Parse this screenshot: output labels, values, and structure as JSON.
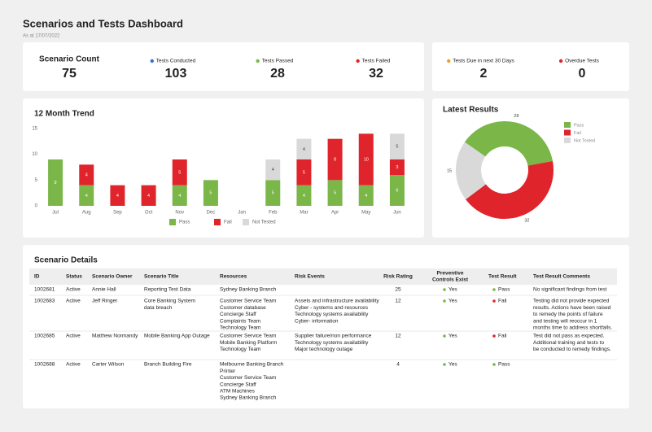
{
  "header": {
    "title": "Scenarios and Tests Dashboard",
    "subtitle": "As at 17/07/2022"
  },
  "kpis": [
    {
      "label": "Scenario Count",
      "value": 75
    },
    {
      "label": "Tests Conducted",
      "value": 103,
      "color": "#3a6fc4"
    },
    {
      "label": "Tests Passed",
      "value": 28,
      "color": "#7ab648"
    },
    {
      "label": "Tests Failed",
      "value": 32,
      "color": "#e0242b"
    },
    {
      "label": "Tests Due in next 30 Days",
      "value": 2,
      "color": "#f0a020"
    },
    {
      "label": "Overdue Tests",
      "value": 0,
      "color": "#e0242b"
    }
  ],
  "chart_data": [
    {
      "type": "bar",
      "stacked": true,
      "title": "12 Month Trend",
      "categories": [
        "Jul",
        "Aug",
        "Sep",
        "Oct",
        "Nov",
        "Dec",
        "Jan",
        "Feb",
        "Mar",
        "Apr",
        "May",
        "Jun"
      ],
      "series": [
        {
          "name": "Pass",
          "color": "#7ab648",
          "values": [
            9,
            4,
            null,
            null,
            4,
            5,
            null,
            5,
            4,
            5,
            4,
            6
          ]
        },
        {
          "name": "Fail",
          "color": "#e0242b",
          "values": [
            null,
            4,
            4,
            4,
            5,
            null,
            null,
            null,
            5,
            8,
            10,
            3
          ]
        },
        {
          "name": "Not Tested",
          "color": "#d9d9d9",
          "values": [
            null,
            null,
            null,
            null,
            null,
            null,
            null,
            4,
            4,
            null,
            null,
            5
          ]
        }
      ],
      "ylim": [
        0,
        15
      ],
      "yticks": [
        0,
        5,
        10,
        15
      ]
    },
    {
      "type": "pie",
      "donut": true,
      "title": "Latest Results",
      "categories": [
        "Pass",
        "Fail",
        "Not Tested"
      ],
      "values": [
        28,
        32,
        15
      ],
      "colors": [
        "#7ab648",
        "#e0242b",
        "#d9d9d9"
      ]
    }
  ],
  "table": {
    "title": "Scenario Details",
    "columns": [
      "ID",
      "Status",
      "Scenario Owner",
      "Scenario Title",
      "Resources",
      "Risk Events",
      "Risk Rating",
      [
        "Preventive",
        "Controls Exist"
      ],
      "Test Result",
      "Test Result Comments"
    ],
    "rows": [
      [
        "1002681",
        "Active",
        "Annie Hall",
        "Reporting Test Data",
        [
          "Sydney Banking Branch"
        ],
        [],
        25,
        {
          "text": "Yes",
          "dot": "#7ab648"
        },
        {
          "text": "Pass",
          "dot": "#7ab648"
        },
        [
          "No significant findings from test"
        ]
      ],
      [
        "1002683",
        "Active",
        "Jeff Ringer",
        [
          "Core Banking System",
          "data breach"
        ],
        [
          "Customer Service Team",
          "Customer database",
          "Concierge Staff",
          "Complaints Team",
          "Technology Team"
        ],
        [
          "Assets and infrastructure availability",
          "Cyber - systems and resources",
          "Technology systems availability",
          "Cyber- information"
        ],
        12,
        {
          "text": "Yes",
          "dot": "#7ab648"
        },
        {
          "text": "Fail",
          "dot": "#e0242b"
        },
        [
          "Testing did not provide expected",
          "results. Actions have been raised",
          "to remedy the points of failure",
          "and testing will reoccur in 1",
          "months time to address shortfalls."
        ]
      ],
      [
        "1002685",
        "Active",
        "Matthew Normandy",
        "Mobile Banking App Outage",
        [
          "Customer Service Team",
          "Mobile Banking Platform",
          "Technology Team"
        ],
        [
          "Supplier failure/non performance",
          "Technology systems availability",
          "Major technology outage"
        ],
        12,
        {
          "text": "Yes",
          "dot": "#7ab648"
        },
        {
          "text": "Fail",
          "dot": "#e0242b"
        },
        [
          "Test did not pass as expected.",
          "Additional training and tests to",
          "be conducted to remedy findings."
        ]
      ],
      [
        "1002688",
        "Active",
        "Carter Wilson",
        "Branch Building Fire",
        [
          "Melbourne Banking Branch",
          "Printer",
          "Customer Service Team",
          "Concierge Staff",
          "ATM Machines",
          "Sydney Banking Branch"
        ],
        [],
        4,
        {
          "text": "Yes",
          "dot": "#7ab648"
        },
        {
          "text": "Pass",
          "dot": "#7ab648"
        },
        []
      ]
    ]
  }
}
